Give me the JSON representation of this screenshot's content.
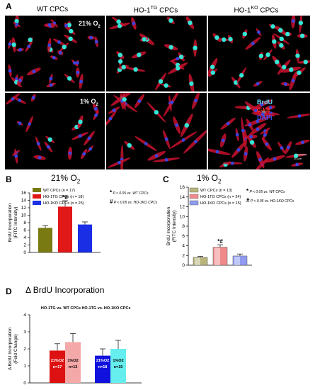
{
  "panelA": {
    "letter": "A",
    "columns": [
      {
        "label": "WT CPCs"
      },
      {
        "label": "HO-1",
        "sup": "TG",
        "suffix": " CPCs"
      },
      {
        "label": "HO-1",
        "sup": "KO",
        "suffix": " CPCs"
      }
    ],
    "row_labels": [
      {
        "text": "21% O",
        "sub": "2"
      },
      {
        "text": "1% O",
        "sub": "2"
      }
    ],
    "stain_legend": [
      {
        "text": "BrdU",
        "color": "#66ddff"
      },
      {
        "text": "c-kit",
        "color": "#ff3333"
      },
      {
        "text": "DAPI",
        "color": "#3355ff"
      }
    ],
    "scale_bar": "20 μm"
  },
  "panelB": {
    "letter": "B",
    "title": "21% O",
    "title_sub": "2",
    "stats": [
      {
        "sym": "*",
        "text": "P < 0.05 vs. WT CPCs"
      },
      {
        "sym": "#",
        "text": "P < 0.05 vs. HO-1KO CPCs"
      }
    ]
  },
  "panelC": {
    "letter": "C",
    "title": "1% O",
    "title_sub": "2",
    "stats": [
      {
        "sym": "*",
        "text": "P < 0.05 vs. WT CPCs"
      },
      {
        "sym": "#",
        "text": "P < 0.05 vs. HO-1KO CPCs"
      }
    ]
  },
  "panelD": {
    "letter": "D",
    "title": "Δ BrdU Incorporation",
    "group_labels": [
      "HO-1TG vs. WT CPCs",
      "HO-1TG vs. HO-1KO CPCs"
    ]
  },
  "chart_data": [
    {
      "type": "bar",
      "panel": "B",
      "title": "21% O2",
      "ylabel": "BrdU Incorporation (FITC Intensity)",
      "ylim": [
        0,
        16
      ],
      "yticks": [
        0,
        2,
        4,
        6,
        8,
        10,
        12,
        14,
        16
      ],
      "categories": [
        "WT CPCs (n = 17)",
        "HO-1TG CPCs (n = 18)",
        "HO-1KO CPCs (n = 25)"
      ],
      "values": [
        6.6,
        12.3,
        7.5
      ],
      "errors": [
        0.6,
        1.6,
        0.7
      ],
      "colors": [
        "#7a7a12",
        "#e01818",
        "#1a2ee6"
      ],
      "significance": [
        "",
        "*#",
        ""
      ],
      "legend_placement": "top-left"
    },
    {
      "type": "bar",
      "panel": "C",
      "title": "1% O2",
      "ylabel": "BrdU Incorporation (FITC Intensity)",
      "ylim": [
        0,
        16
      ],
      "yticks": [
        0,
        2,
        4,
        6,
        8,
        10,
        12,
        14,
        16
      ],
      "categories": [
        "WT CPCs (n = 13)",
        "HO-1TG CPCs (n = 24)",
        "HO-1KO CPCs (n = 15)"
      ],
      "values": [
        1.6,
        3.7,
        1.9
      ],
      "errors": [
        0.2,
        0.5,
        0.4
      ],
      "colors": [
        "#b8b47a",
        "#f08a8a",
        "#8f9af0"
      ],
      "significance": [
        "",
        "*#",
        ""
      ],
      "legend_placement": "top-left"
    },
    {
      "type": "bar",
      "panel": "D",
      "title": "Δ BrdU Incorporation",
      "ylabel": "Δ BrdU Incorporation (Fold Change)",
      "ylim": [
        0,
        4
      ],
      "yticks": [
        0,
        1,
        2,
        3,
        4
      ],
      "groups": [
        "HO-1TG vs. WT CPCs",
        "HO-1TG vs. HO-1KO CPCs"
      ],
      "series": [
        {
          "bar_label": "21%O2",
          "n": "n=17",
          "group": 0,
          "value": 1.9,
          "error": 0.4,
          "color": "#dd1111"
        },
        {
          "bar_label": "1%O2",
          "n": "n=13",
          "group": 0,
          "value": 2.4,
          "error": 0.5,
          "color": "#f5a8a8"
        },
        {
          "bar_label": "21%O2",
          "n": "n=18",
          "group": 1,
          "value": 1.6,
          "error": 0.4,
          "color": "#1111dd"
        },
        {
          "bar_label": "1%O2",
          "n": "n=15",
          "group": 1,
          "value": 2.0,
          "error": 0.5,
          "color": "#66eeee"
        }
      ]
    }
  ]
}
